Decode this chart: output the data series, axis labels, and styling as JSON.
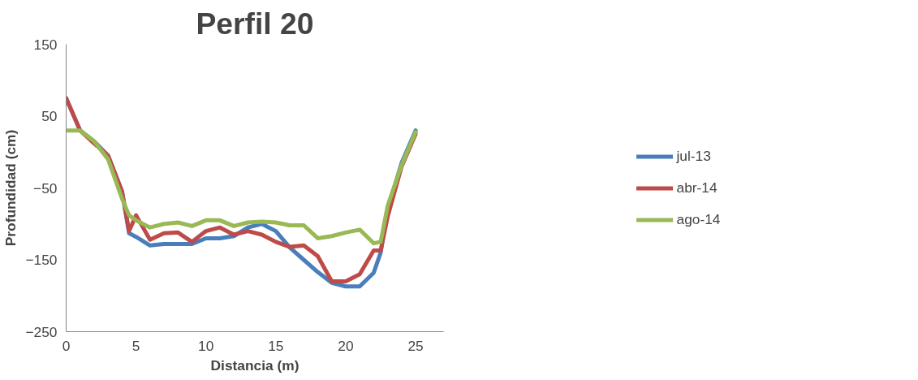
{
  "chart_data": {
    "type": "line",
    "title": "Perfil 20",
    "xlabel": "Distancia (m)",
    "ylabel": "Profundidad (cm)",
    "x": [
      0,
      1,
      2,
      3,
      4,
      4.5,
      5,
      6,
      7,
      8,
      9,
      10,
      11,
      12,
      13,
      14,
      15,
      16,
      17,
      18,
      19,
      20,
      21,
      22,
      22.5,
      23,
      24,
      25
    ],
    "series": [
      {
        "name": "jul-13",
        "color": "#4a7ebb",
        "values": [
          75,
          30,
          15,
          -5,
          -55,
          -113,
          -118,
          -130,
          -128,
          -128,
          -128,
          -120,
          -120,
          -117,
          -105,
          -100,
          -110,
          -133,
          -150,
          -167,
          -182,
          -187,
          -187,
          -168,
          -140,
          -80,
          -15,
          30
        ]
      },
      {
        "name": "abr-14",
        "color": "#be4b48",
        "values": [
          75,
          30,
          12,
          -5,
          -55,
          -110,
          -88,
          -122,
          -113,
          -112,
          -125,
          -110,
          -105,
          -115,
          -110,
          -115,
          -125,
          -132,
          -130,
          -145,
          -180,
          -180,
          -170,
          -137,
          -137,
          -90,
          -20,
          25
        ]
      },
      {
        "name": "ago-14",
        "color": "#98b954",
        "values": [
          30,
          30,
          15,
          -10,
          -65,
          -88,
          -95,
          -105,
          -100,
          -98,
          -103,
          -95,
          -95,
          -103,
          -98,
          -97,
          -98,
          -102,
          -102,
          -120,
          -117,
          -112,
          -108,
          -127,
          -125,
          -75,
          -18,
          28
        ]
      }
    ],
    "xlim": [
      0,
      27
    ],
    "xticks": [
      0,
      5,
      10,
      15,
      20,
      25
    ],
    "ylim": [
      -250,
      150
    ],
    "yticks": [
      -250,
      -150,
      -50,
      50,
      150
    ],
    "grid": false,
    "legend": "right",
    "marker": "none",
    "line_style": "solid"
  }
}
